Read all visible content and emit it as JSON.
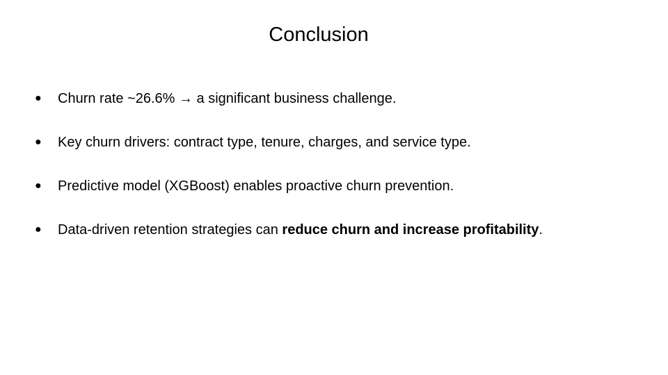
{
  "slide": {
    "title": "Conclusion",
    "bullet_glyph": "●",
    "bullets": [
      {
        "text": "Churn rate ~26.6% → a significant business challenge."
      },
      {
        "text": "Key churn drivers: contract type, tenure, charges, and service type."
      },
      {
        "text": "Predictive model (XGBoost) enables proactive churn prevention."
      },
      {
        "text_before": "Data-driven retention strategies can ",
        "text_bold": "reduce churn and increase profitability",
        "text_after": "."
      }
    ]
  }
}
